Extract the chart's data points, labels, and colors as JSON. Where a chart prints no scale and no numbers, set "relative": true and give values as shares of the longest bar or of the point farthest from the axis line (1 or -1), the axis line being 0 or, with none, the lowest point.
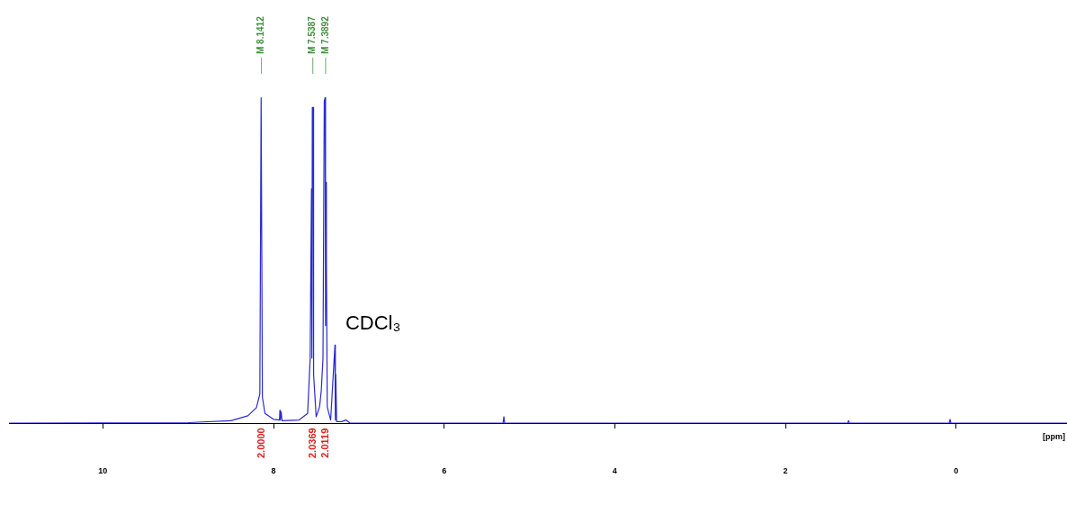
{
  "chart_data": {
    "type": "line",
    "relative": true,
    "xlabel": "[ppm]",
    "legend": false,
    "grid": false,
    "marker": "none",
    "x": [
      11.1,
      9.0,
      8.5,
      8.3,
      8.2,
      8.16,
      8.145,
      8.138,
      8.13,
      8.1,
      8.0,
      7.93,
      7.925,
      7.92,
      7.91,
      7.9,
      7.7,
      7.6,
      7.57,
      7.555,
      7.55,
      7.545,
      7.535,
      7.53,
      7.5,
      7.46,
      7.44,
      7.42,
      7.405,
      7.395,
      7.39,
      7.385,
      7.38,
      7.37,
      7.33,
      7.28,
      7.275,
      7.27,
      7.26,
      7.2,
      7.15,
      7.1,
      5.31,
      5.3,
      5.29,
      1.27,
      1.26,
      1.25,
      0.08,
      0.07,
      0.06,
      -1.3
    ],
    "series": [
      {
        "color": "#2a2ad0",
        "values": [
          0,
          0.002,
          0.008,
          0.023,
          0.048,
          0.09,
          1.0,
          1.0,
          0.08,
          0.03,
          0.012,
          0.01,
          0.04,
          0.01,
          0.035,
          0.008,
          0.01,
          0.03,
          0.2,
          0.72,
          0.2,
          0.97,
          0.97,
          0.15,
          0.02,
          0.05,
          0.1,
          0.2,
          0.99,
          1.0,
          0.3,
          0.74,
          0.5,
          0.05,
          0.01,
          0.24,
          0.01,
          0.15,
          0.005,
          0.005,
          0.01,
          0,
          0,
          0.02,
          0,
          0,
          0.008,
          0,
          0,
          0.012,
          0,
          0
        ]
      }
    ],
    "xlim": [
      11.1,
      -1.3
    ],
    "xticks": [
      10,
      8,
      6,
      4,
      2,
      0
    ],
    "annotations": [
      {
        "text": "M 8.1412",
        "x": 8.1412
      },
      {
        "text": "M 7.5387",
        "x": 7.5387
      },
      {
        "text": "M 7.3892",
        "x": 7.3892
      },
      "2.0000",
      "2.0369",
      "2.0119",
      "CDCl₃"
    ]
  }
}
